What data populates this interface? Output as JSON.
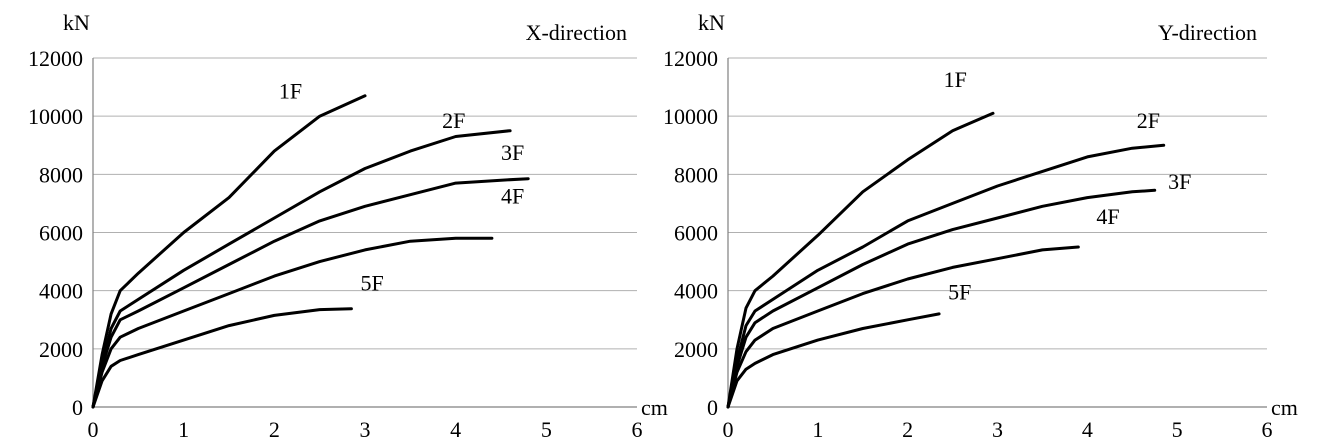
{
  "chart_data": [
    {
      "type": "line",
      "title": "X-direction",
      "xlabel": "cm",
      "ylabel": "kN",
      "xlim": [
        0,
        6
      ],
      "ylim": [
        0,
        12000
      ],
      "xticks": [
        0,
        1,
        2,
        3,
        4,
        5,
        6
      ],
      "yticks": [
        0,
        2000,
        4000,
        6000,
        8000,
        10000,
        12000
      ],
      "grid": true,
      "series": [
        {
          "name": "1F",
          "x": [
            0,
            0.1,
            0.2,
            0.3,
            0.5,
            1.0,
            1.5,
            2.0,
            2.5,
            3.0
          ],
          "y": [
            0,
            1800,
            3200,
            4000,
            4600,
            6000,
            7200,
            8800,
            10000,
            10700
          ]
        },
        {
          "name": "2F",
          "x": [
            0,
            0.1,
            0.2,
            0.3,
            0.5,
            1.0,
            1.5,
            2.0,
            2.5,
            3.0,
            3.5,
            4.0,
            4.6
          ],
          "y": [
            0,
            1500,
            2700,
            3300,
            3700,
            4700,
            5600,
            6500,
            7400,
            8200,
            8800,
            9300,
            9500
          ]
        },
        {
          "name": "3F",
          "x": [
            0,
            0.1,
            0.2,
            0.3,
            0.5,
            1.0,
            1.5,
            2.0,
            2.5,
            3.0,
            3.5,
            4.0,
            4.5,
            4.8
          ],
          "y": [
            0,
            1400,
            2400,
            3000,
            3300,
            4100,
            4900,
            5700,
            6400,
            6900,
            7300,
            7700,
            7800,
            7850
          ]
        },
        {
          "name": "4F",
          "x": [
            0,
            0.1,
            0.2,
            0.3,
            0.5,
            1.0,
            1.5,
            2.0,
            2.5,
            3.0,
            3.5,
            4.0,
            4.4
          ],
          "y": [
            0,
            1200,
            2000,
            2400,
            2700,
            3300,
            3900,
            4500,
            5000,
            5400,
            5700,
            5800,
            5800
          ]
        },
        {
          "name": "5F",
          "x": [
            0,
            0.1,
            0.2,
            0.3,
            0.5,
            1.0,
            1.5,
            2.0,
            2.5,
            2.85
          ],
          "y": [
            0,
            900,
            1400,
            1600,
            1800,
            2300,
            2800,
            3150,
            3350,
            3380
          ]
        }
      ],
      "label_pos": {
        "1F": [
          2.05,
          10600
        ],
        "2F": [
          3.85,
          9600
        ],
        "3F": [
          4.5,
          8500
        ],
        "4F": [
          4.5,
          7000
        ],
        "5F": [
          2.95,
          4000
        ]
      }
    },
    {
      "type": "line",
      "title": "Y-direction",
      "xlabel": "cm",
      "ylabel": "kN",
      "xlim": [
        0,
        6
      ],
      "ylim": [
        0,
        12000
      ],
      "xticks": [
        0,
        1,
        2,
        3,
        4,
        5,
        6
      ],
      "yticks": [
        0,
        2000,
        4000,
        6000,
        8000,
        10000,
        12000
      ],
      "grid": true,
      "series": [
        {
          "name": "1F",
          "x": [
            0,
            0.1,
            0.2,
            0.3,
            0.5,
            1.0,
            1.5,
            2.0,
            2.5,
            2.95
          ],
          "y": [
            0,
            2000,
            3400,
            4000,
            4500,
            5900,
            7400,
            8500,
            9500,
            10100
          ]
        },
        {
          "name": "2F",
          "x": [
            0,
            0.1,
            0.2,
            0.3,
            0.5,
            1.0,
            1.5,
            2.0,
            2.5,
            3.0,
            3.5,
            4.0,
            4.5,
            4.85
          ],
          "y": [
            0,
            1600,
            2800,
            3300,
            3700,
            4700,
            5500,
            6400,
            7000,
            7600,
            8100,
            8600,
            8900,
            9000
          ]
        },
        {
          "name": "3F",
          "x": [
            0,
            0.1,
            0.2,
            0.3,
            0.5,
            1.0,
            1.5,
            2.0,
            2.5,
            3.0,
            3.5,
            4.0,
            4.5,
            4.75
          ],
          "y": [
            0,
            1400,
            2400,
            2900,
            3300,
            4100,
            4900,
            5600,
            6100,
            6500,
            6900,
            7200,
            7400,
            7450
          ]
        },
        {
          "name": "4F",
          "x": [
            0,
            0.1,
            0.2,
            0.3,
            0.5,
            1.0,
            1.5,
            2.0,
            2.5,
            3.0,
            3.5,
            3.9
          ],
          "y": [
            0,
            1200,
            1900,
            2300,
            2700,
            3300,
            3900,
            4400,
            4800,
            5100,
            5400,
            5500
          ]
        },
        {
          "name": "5F",
          "x": [
            0,
            0.1,
            0.2,
            0.3,
            0.5,
            1.0,
            1.5,
            2.0,
            2.35
          ],
          "y": [
            0,
            900,
            1300,
            1500,
            1800,
            2300,
            2700,
            3000,
            3200
          ]
        }
      ],
      "label_pos": {
        "1F": [
          2.4,
          11000
        ],
        "2F": [
          4.55,
          9600
        ],
        "3F": [
          4.9,
          7500
        ],
        "4F": [
          4.1,
          6300
        ],
        "5F": [
          2.45,
          3700
        ]
      }
    }
  ]
}
